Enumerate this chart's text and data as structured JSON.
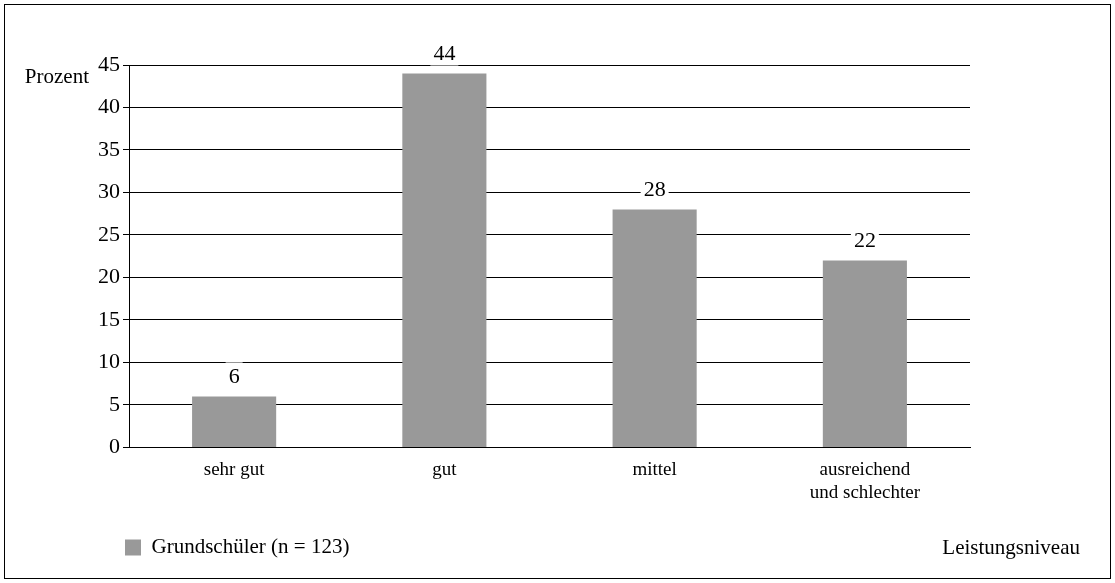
{
  "chart_data": {
    "type": "bar",
    "ylabel": "Prozent",
    "xlabel": "Leistungsniveau",
    "categories": [
      "sehr gut",
      "gut",
      "mittel",
      "ausreichend\nund schlechter"
    ],
    "series": [
      {
        "name": "Grundschüler (n = 123)",
        "color": "#999999",
        "values": [
          6,
          44,
          28,
          22
        ]
      }
    ],
    "ylim": [
      0,
      45
    ],
    "yticks": [
      0,
      5,
      10,
      15,
      20,
      25,
      30,
      35,
      40,
      45
    ],
    "grid": "y",
    "legend": "bottom left",
    "data_labels": true
  }
}
